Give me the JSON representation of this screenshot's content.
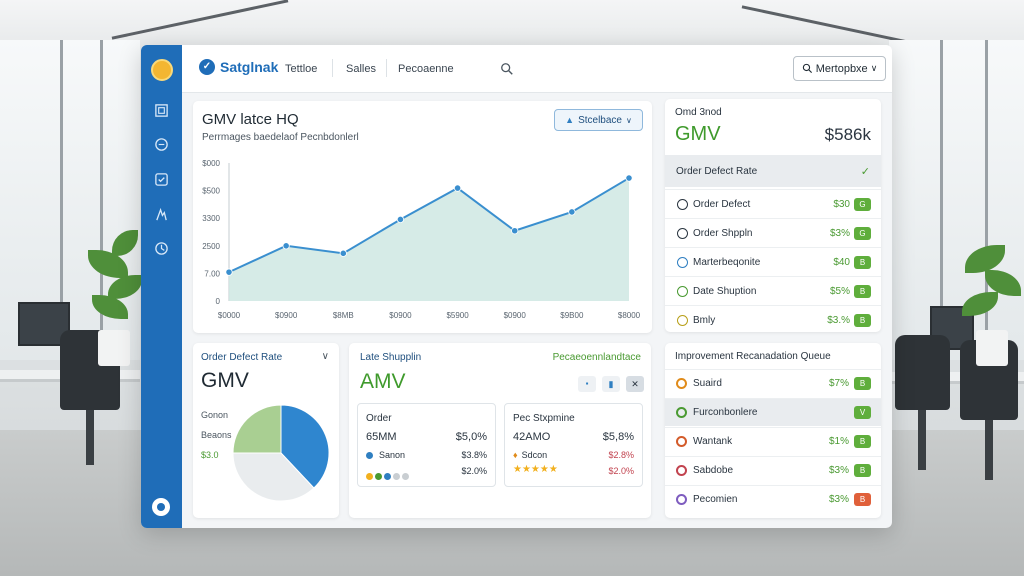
{
  "topbar": {
    "brand": "Satglnak",
    "nav": [
      "Tettloe",
      "Salles",
      "Pecoaenne"
    ],
    "market_button": "Mertopbxe"
  },
  "chart_panel": {
    "title": "GMV latce HQ",
    "subtitle": "Perrmages baedelaof Pecnbdonlerl",
    "dropdown": "Stcelbace"
  },
  "chart_data": {
    "type": "area",
    "ylabels": [
      "$000",
      "$500",
      "3300",
      "2500",
      "7.00",
      "0"
    ],
    "xlabels": [
      "$0000",
      "$0900",
      "$8MB",
      "$0900",
      "$5900",
      "$0900",
      "$9B00",
      "$8000"
    ],
    "x": [
      0,
      1,
      2,
      3,
      4,
      5,
      6,
      7
    ],
    "values": [
      1150,
      2200,
      1900,
      3250,
      4500,
      2800,
      3550,
      4900
    ],
    "ylim": [
      0,
      5500
    ],
    "colors": {
      "line": "#3a8fcf",
      "fill": "#cfe8e3"
    }
  },
  "gmv_panel": {
    "label": "Omd 3nod",
    "title": "GMV",
    "value": "$586k",
    "header": "Order Defect Rate",
    "rows": [
      {
        "label": "Order Defect",
        "value": "$30",
        "chip": "G",
        "icon": "circle-icon",
        "color": "#2a3540"
      },
      {
        "label": "Order Shppln",
        "value": "$3%",
        "chip": "G",
        "icon": "clock-icon",
        "color": "#2a3540"
      },
      {
        "label": "Marterbeqonite",
        "value": "$40",
        "chip": "B",
        "icon": "globe-icon",
        "color": "#2f7fc1"
      },
      {
        "label": "Date Shuption",
        "value": "$5%",
        "chip": "B",
        "icon": "box-icon",
        "color": "#4a9a32"
      },
      {
        "label": "Bmly",
        "value": "$3.%",
        "chip": "B",
        "icon": "coin-icon",
        "color": "#b8a01a"
      }
    ]
  },
  "defect_panel": {
    "title": "Order Defect Rate",
    "big": "GMV",
    "legend": [
      "Gonon",
      "Beaons",
      "$3.0"
    ],
    "pie": [
      {
        "value": 38,
        "color": "#2f86cf"
      },
      {
        "value": 37,
        "color": "#e9ecee"
      },
      {
        "value": 25,
        "color": "#a9cf92"
      }
    ]
  },
  "shipping_panel": {
    "title": "Late Shupplin",
    "link": "Pecaeoennlandtace",
    "big": "AMV",
    "card_a": {
      "label": "Order",
      "amount": "65MM",
      "pct": "$5,0%",
      "sub_label": "Sanon",
      "sub_pct": "$3.8%",
      "bottom_pct": "$2.0%"
    },
    "card_b": {
      "label": "Pec Stxpmine",
      "amount": "42AMO",
      "pct": "$5,8%",
      "sub_label": "Sdcon",
      "sub_pct": "$2.8%",
      "bottom_pct": "$2.0%"
    }
  },
  "queue_panel": {
    "title": "Improvement Recanadation Queue",
    "rows": [
      {
        "label": "Suaird",
        "value": "$7%",
        "chip": "B",
        "color": "#e08b1a"
      },
      {
        "label": "Furconbonlere",
        "value": "",
        "chip": "V",
        "color": "#4a9a32"
      },
      {
        "label": "Wantank",
        "value": "$1%",
        "chip": "B",
        "color": "#d35b2a"
      },
      {
        "label": "Sabdobe",
        "value": "$3%",
        "chip": "B",
        "color": "#c2434f"
      },
      {
        "label": "Pecomien",
        "value": "$3%",
        "chip": "B",
        "color": "#7e5cbf"
      }
    ]
  }
}
